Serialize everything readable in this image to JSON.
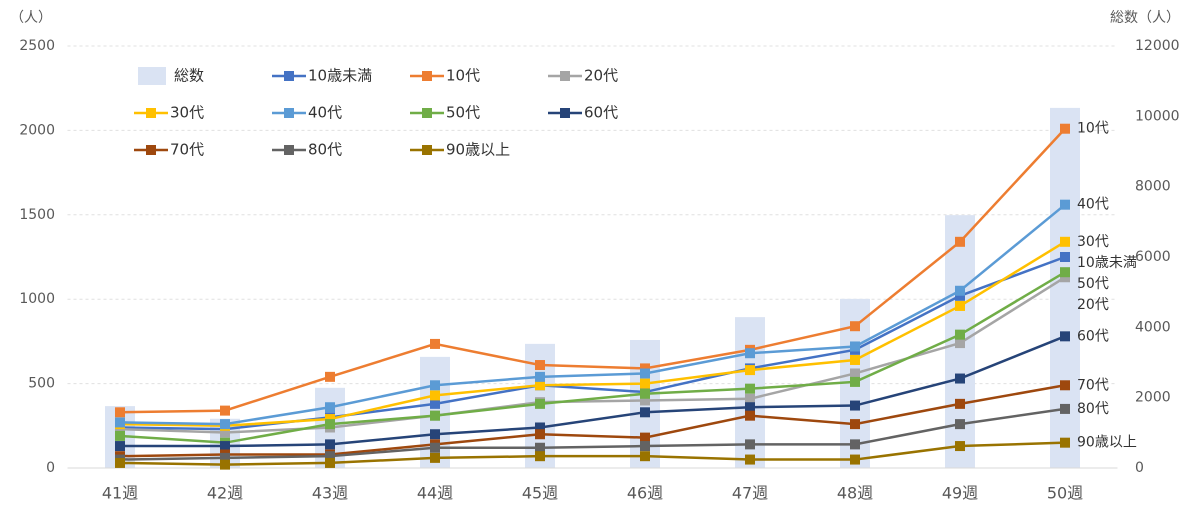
{
  "chart_data": {
    "type": "bar-line",
    "y_label": "（人）",
    "y2_label": "総数（人）",
    "categories": [
      "41週",
      "42週",
      "43週",
      "44週",
      "45週",
      "46週",
      "47週",
      "48週",
      "49週",
      "50週"
    ],
    "ylim": [
      0,
      2500
    ],
    "yticks": [
      0,
      500,
      1000,
      1500,
      2000,
      2500
    ],
    "y2lim": [
      0,
      12000
    ],
    "y2ticks": [
      0,
      2000,
      4000,
      6000,
      8000,
      10000,
      12000
    ],
    "grid": true,
    "bar_series": {
      "name": "総数",
      "color": "#dae3f3",
      "axis": "y2",
      "values": [
        1760,
        1400,
        2280,
        3160,
        3530,
        3640,
        4290,
        4810,
        7190,
        10240
      ]
    },
    "series": [
      {
        "name": "10歳未満",
        "color": "#4472c4",
        "values": [
          240,
          230,
          300,
          380,
          490,
          450,
          590,
          700,
          1020,
          1250
        ]
      },
      {
        "name": "10代",
        "color": "#ed7d31",
        "values": [
          330,
          340,
          540,
          735,
          610,
          590,
          700,
          840,
          1340,
          2010
        ]
      },
      {
        "name": "20代",
        "color": "#a5a5a5",
        "values": [
          230,
          210,
          240,
          310,
          390,
          400,
          410,
          560,
          740,
          1130
        ]
      },
      {
        "name": "30代",
        "color": "#ffc000",
        "values": [
          260,
          250,
          290,
          430,
          490,
          500,
          580,
          640,
          960,
          1340
        ]
      },
      {
        "name": "40代",
        "color": "#5b9bd5",
        "values": [
          270,
          260,
          360,
          490,
          540,
          560,
          680,
          720,
          1050,
          1560
        ]
      },
      {
        "name": "50代",
        "color": "#70ad47",
        "values": [
          190,
          150,
          260,
          310,
          380,
          440,
          470,
          510,
          790,
          1160
        ]
      },
      {
        "name": "60代",
        "color": "#264478",
        "values": [
          130,
          130,
          140,
          200,
          240,
          330,
          360,
          370,
          530,
          780
        ]
      },
      {
        "name": "70代",
        "color": "#9e480e",
        "values": [
          70,
          80,
          80,
          140,
          200,
          180,
          310,
          260,
          380,
          490
        ]
      },
      {
        "name": "80代",
        "color": "#636363",
        "values": [
          50,
          60,
          70,
          120,
          120,
          130,
          140,
          140,
          260,
          350
        ]
      },
      {
        "name": "90歳以上",
        "color": "#997300",
        "values": [
          30,
          20,
          30,
          60,
          70,
          70,
          50,
          50,
          130,
          150
        ]
      }
    ]
  }
}
